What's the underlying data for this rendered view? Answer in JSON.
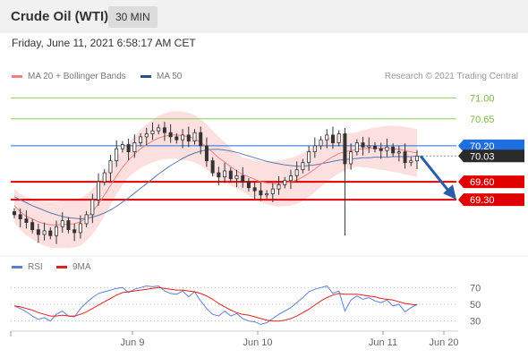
{
  "header": {
    "title": "Crude Oil (WTI)",
    "timeframe": "30 MIN"
  },
  "datetime": "Friday, June 11, 2021 6:58:17 AM CET",
  "legend": {
    "ma20": {
      "label": "MA 20 + Bollinger Bands",
      "color": "#f08080"
    },
    "ma50": {
      "label": "MA 50",
      "color": "#2a4f8f"
    }
  },
  "credit": "Research © 2021 Trading Central",
  "indicator_legend": {
    "rsi": {
      "label": "RSI",
      "color": "#5b7fd6"
    },
    "ma9": {
      "label": "9MA",
      "color": "#e02020"
    }
  },
  "chart_data": [
    {
      "type": "candlestick",
      "title": "Crude Oil (WTI)",
      "y_ticks": [
        71.0,
        70.65
      ],
      "ylim": [
        68.6,
        71.2
      ],
      "x_tick_labels": [
        "Jun 9",
        "Jun 10",
        "Jun 11",
        "Jun 20"
      ],
      "levels": [
        {
          "label": "71.00",
          "value": 71.0,
          "kind": "target",
          "color": "#8fce5a"
        },
        {
          "label": "70.65",
          "value": 70.65,
          "kind": "target",
          "color": "#8fce5a"
        },
        {
          "label": "70.20",
          "value": 70.2,
          "kind": "pivot",
          "color": "#1f6fe0"
        },
        {
          "label": "70.03",
          "value": 70.03,
          "kind": "last-price",
          "color": "#222222"
        },
        {
          "label": "69.60",
          "value": 69.6,
          "kind": "support",
          "color": "#e00000"
        },
        {
          "label": "69.30",
          "value": 69.3,
          "kind": "support",
          "color": "#e00000"
        }
      ],
      "series": [
        {
          "name": "Price (close)",
          "values": [
            69.05,
            68.98,
            68.92,
            68.8,
            68.72,
            68.78,
            68.7,
            68.85,
            68.95,
            68.8,
            68.75,
            68.9,
            69.05,
            69.3,
            69.6,
            69.75,
            69.95,
            70.15,
            70.22,
            70.1,
            70.25,
            70.35,
            70.4,
            70.45,
            70.5,
            70.42,
            70.35,
            70.3,
            70.38,
            70.28,
            70.42,
            70.2,
            69.95,
            69.75,
            69.68,
            69.78,
            69.65,
            69.7,
            69.6,
            69.5,
            69.45,
            69.38,
            69.4,
            69.48,
            69.55,
            69.62,
            69.7,
            69.8,
            69.92,
            70.1,
            70.2,
            70.3,
            70.38,
            70.25,
            70.4,
            69.9,
            70.1,
            70.25,
            70.18,
            70.2,
            70.15,
            70.12,
            70.18,
            70.08,
            70.1,
            69.92,
            69.95,
            70.03
          ]
        },
        {
          "name": "MA 20",
          "values": [
            69.2,
            69.1,
            69.02,
            68.98,
            68.93,
            68.9,
            68.88,
            68.88,
            68.89,
            68.89,
            68.9,
            68.93,
            69.0,
            69.1,
            69.23,
            69.38,
            69.54,
            69.7,
            69.84,
            69.96,
            70.06,
            70.15,
            70.22,
            70.28,
            70.33,
            70.36,
            70.38,
            70.38,
            70.37,
            70.35,
            70.32,
            70.26,
            70.18,
            70.09,
            70.0,
            69.93,
            69.85,
            69.78,
            69.72,
            69.68,
            69.64,
            69.6,
            69.58,
            69.57,
            69.57,
            69.58,
            69.6,
            69.63,
            69.68,
            69.74,
            69.81,
            69.89,
            69.96,
            70.02,
            70.07,
            70.1,
            70.12,
            70.14,
            70.15,
            70.16,
            70.16,
            70.16,
            70.16,
            70.15,
            70.14,
            70.12,
            70.1,
            70.08
          ]
        },
        {
          "name": "MA 50",
          "values": [
            69.35,
            69.3,
            69.25,
            69.2,
            69.16,
            69.12,
            69.08,
            69.05,
            69.02,
            69.0,
            68.99,
            68.98,
            68.99,
            69.01,
            69.04,
            69.08,
            69.13,
            69.19,
            69.26,
            69.33,
            69.41,
            69.49,
            69.57,
            69.65,
            69.73,
            69.8,
            69.87,
            69.93,
            69.99,
            70.04,
            70.08,
            70.11,
            70.13,
            70.14,
            70.14,
            70.13,
            70.11,
            70.09,
            70.06,
            70.03,
            70.0,
            69.97,
            69.94,
            69.92,
            69.9,
            69.88,
            69.87,
            69.86,
            69.86,
            69.87,
            69.88,
            69.9,
            69.92,
            69.94,
            69.96,
            69.97,
            69.98,
            69.99,
            70.0,
            70.0,
            70.01,
            70.01,
            70.01,
            70.02,
            70.02,
            70.02,
            70.02,
            70.03
          ]
        }
      ],
      "forecast_arrow": {
        "from": 70.03,
        "to": 69.3
      }
    },
    {
      "type": "line",
      "title": "RSI",
      "y_ticks": [
        70,
        50,
        30
      ],
      "ylim": [
        20,
        80
      ],
      "series": [
        {
          "name": "RSI",
          "values": [
            48,
            45,
            41,
            36,
            32,
            34,
            30,
            38,
            42,
            36,
            35,
            45,
            52,
            58,
            63,
            65,
            67,
            69,
            70,
            64,
            68,
            70,
            72,
            71,
            72,
            66,
            63,
            62,
            66,
            59,
            65,
            54,
            45,
            38,
            36,
            42,
            36,
            39,
            33,
            30,
            29,
            26,
            28,
            33,
            38,
            42,
            46,
            52,
            58,
            65,
            68,
            70,
            72,
            63,
            66,
            42,
            55,
            60,
            56,
            58,
            54,
            52,
            55,
            48,
            50,
            41,
            46,
            50
          ]
        },
        {
          "name": "9MA",
          "values": [
            48,
            47,
            45,
            43,
            40,
            38,
            36,
            36,
            37,
            36,
            36,
            38,
            41,
            45,
            49,
            53,
            57,
            61,
            64,
            65,
            66,
            67,
            68,
            69,
            70,
            69,
            68,
            67,
            67,
            66,
            65,
            63,
            60,
            56,
            51,
            47,
            43,
            40,
            38,
            37,
            35,
            33,
            31,
            30,
            30,
            31,
            33,
            36,
            40,
            44,
            49,
            54,
            58,
            61,
            63,
            62,
            62,
            62,
            61,
            60,
            59,
            57,
            56,
            55,
            53,
            51,
            50,
            49
          ]
        }
      ]
    }
  ]
}
